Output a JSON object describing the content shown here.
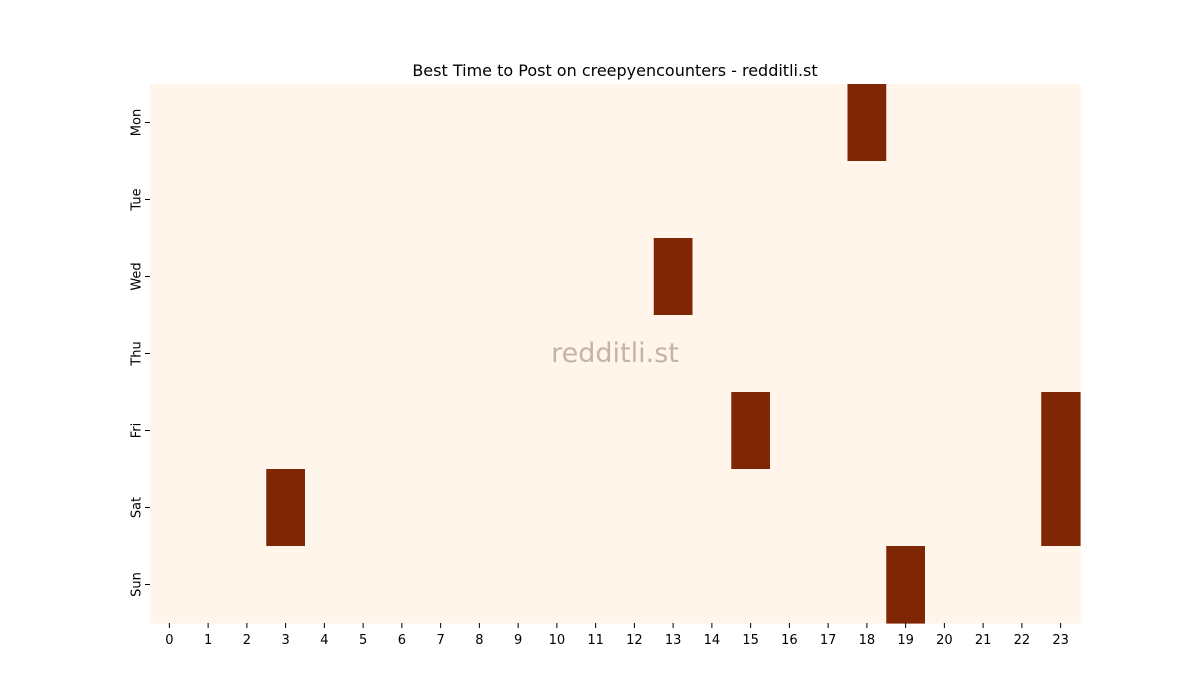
{
  "chart_data": {
    "type": "heatmap",
    "title": "Best Time to Post on creepyencounters - redditli.st",
    "xlabel": "",
    "ylabel": "",
    "x_categories": [
      "0",
      "1",
      "2",
      "3",
      "4",
      "5",
      "6",
      "7",
      "8",
      "9",
      "10",
      "11",
      "12",
      "13",
      "14",
      "15",
      "16",
      "17",
      "18",
      "19",
      "20",
      "21",
      "22",
      "23"
    ],
    "y_categories": [
      "Mon",
      "Tue",
      "Wed",
      "Thu",
      "Fri",
      "Sat",
      "Sun"
    ],
    "values": [
      [
        0,
        0,
        0,
        0,
        0,
        0,
        0,
        0,
        0,
        0,
        0,
        0,
        0,
        0,
        0,
        0,
        0,
        0,
        1,
        0,
        0,
        0,
        0,
        0
      ],
      [
        0,
        0,
        0,
        0,
        0,
        0,
        0,
        0,
        0,
        0,
        0,
        0,
        0,
        0,
        0,
        0,
        0,
        0,
        0,
        0,
        0,
        0,
        0,
        0
      ],
      [
        0,
        0,
        0,
        0,
        0,
        0,
        0,
        0,
        0,
        0,
        0,
        0,
        0,
        1,
        0,
        0,
        0,
        0,
        0,
        0,
        0,
        0,
        0,
        0
      ],
      [
        0,
        0,
        0,
        0,
        0,
        0,
        0,
        0,
        0,
        0,
        0,
        0,
        0,
        0,
        0,
        0,
        0,
        0,
        0,
        0,
        0,
        0,
        0,
        0
      ],
      [
        0,
        0,
        0,
        0,
        0,
        0,
        0,
        0,
        0,
        0,
        0,
        0,
        0,
        0,
        0,
        1,
        0,
        0,
        0,
        0,
        0,
        0,
        0,
        1
      ],
      [
        0,
        0,
        0,
        1,
        0,
        0,
        0,
        0,
        0,
        0,
        0,
        0,
        0,
        0,
        0,
        0,
        0,
        0,
        0,
        0,
        0,
        0,
        0,
        1
      ],
      [
        0,
        0,
        0,
        0,
        0,
        0,
        0,
        0,
        0,
        0,
        0,
        0,
        0,
        0,
        0,
        0,
        0,
        0,
        0,
        1,
        0,
        0,
        0,
        0
      ]
    ],
    "colorscale": {
      "low": "#fff5eb",
      "high": "#7f2704"
    },
    "grid": false,
    "legend": "none",
    "watermark": "redditli.st"
  },
  "colors": {
    "watermark": "#c7b2aa",
    "axis": "#000000"
  }
}
